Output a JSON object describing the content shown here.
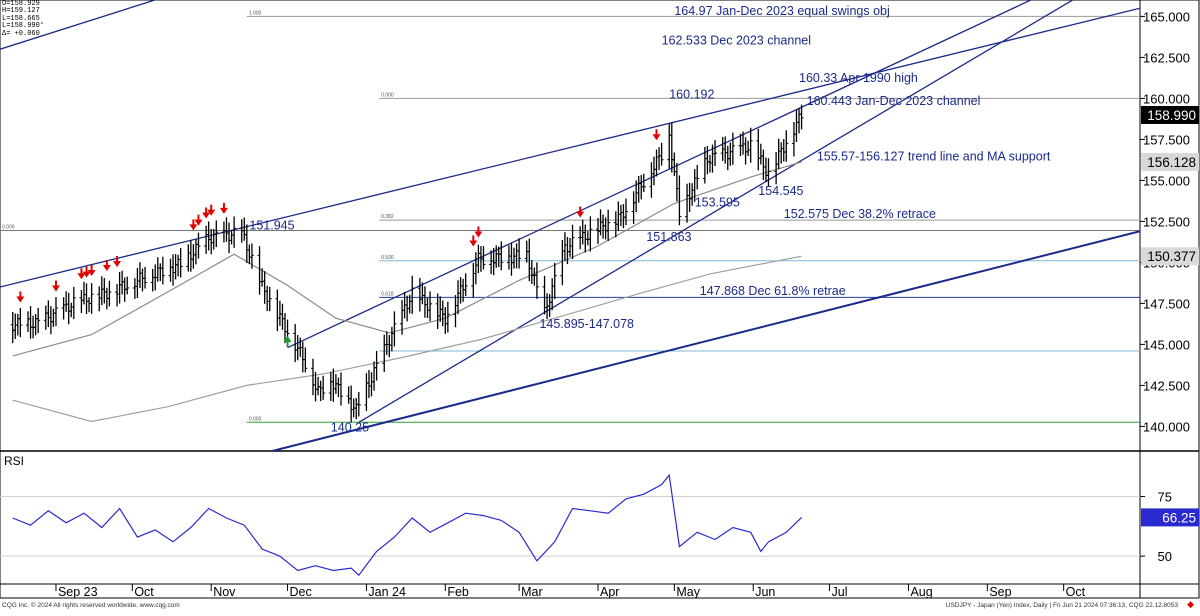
{
  "ohlc_box": {
    "open": "O=158.929",
    "high": "H=159.127",
    "low": "L=158.665",
    "last": "L=158.990°",
    "change": "Δ= +0.060"
  },
  "footer": {
    "left": "CQG Inc. © 2024 All rights reserved worldwide. www.cqg.com",
    "right": "USDJPY - Japan (Yen) Index, Daily | Fri Jun 21 2024 07:36:13, CQG 22.12.8053"
  },
  "chart_data": [
    {
      "type": "ohlc",
      "ylim": [
        138.5,
        166.0
      ],
      "x_tick_labels": [
        "Sep 23",
        "Oct",
        "Nov",
        "Dec",
        "Jan 24",
        "Feb",
        "Mar",
        "Apr",
        "May",
        "Jun",
        "Jul",
        "Aug",
        "Sep",
        "Oct"
      ],
      "y_tick_labels": [
        "140.000",
        "142.500",
        "145.000",
        "147.500",
        "150.000",
        "152.500",
        "155.000",
        "157.500",
        "160.000",
        "162.500",
        "165.000"
      ],
      "price_badges": [
        "158.990",
        "156.128",
        "150.377"
      ],
      "price_anchors": [
        {
          "x": "2023-08-15",
          "y": 146.2
        },
        {
          "x": "2023-08-25",
          "y": 146.3
        },
        {
          "x": "2023-09-08",
          "y": 147.5
        },
        {
          "x": "2023-09-22",
          "y": 148.2
        },
        {
          "x": "2023-10-04",
          "y": 149.0
        },
        {
          "x": "2023-10-20",
          "y": 149.9
        },
        {
          "x": "2023-10-31",
          "y": 151.5
        },
        {
          "x": "2023-11-13",
          "y": 151.8
        },
        {
          "x": "2023-11-21",
          "y": 148.5
        },
        {
          "x": "2023-12-07",
          "y": 144.2
        },
        {
          "x": "2023-12-13",
          "y": 142.1
        },
        {
          "x": "2023-12-18",
          "y": 142.8
        },
        {
          "x": "2023-12-28",
          "y": 141.0
        },
        {
          "x": "2024-01-10",
          "y": 145.3
        },
        {
          "x": "2024-01-19",
          "y": 148.1
        },
        {
          "x": "2024-02-01",
          "y": 146.6
        },
        {
          "x": "2024-02-14",
          "y": 150.2
        },
        {
          "x": "2024-03-04",
          "y": 150.4
        },
        {
          "x": "2024-03-11",
          "y": 146.9
        },
        {
          "x": "2024-03-19",
          "y": 150.9
        },
        {
          "x": "2024-04-10",
          "y": 152.8
        },
        {
          "x": "2024-04-26",
          "y": 156.6
        },
        {
          "x": "2024-04-29",
          "y": 157.8
        },
        {
          "x": "2024-05-03",
          "y": 153.0
        },
        {
          "x": "2024-05-14",
          "y": 156.3
        },
        {
          "x": "2024-05-31",
          "y": 157.1
        },
        {
          "x": "2024-06-07",
          "y": 155.4
        },
        {
          "x": "2024-06-20",
          "y": 158.99
        }
      ],
      "ma_fast": [
        {
          "x": "2023-08-15",
          "y": 144.3
        },
        {
          "x": "2023-09-15",
          "y": 145.6
        },
        {
          "x": "2023-10-15",
          "y": 148.2
        },
        {
          "x": "2023-11-10",
          "y": 150.5
        },
        {
          "x": "2023-12-01",
          "y": 148.6
        },
        {
          "x": "2023-12-20",
          "y": 146.6
        },
        {
          "x": "2024-01-10",
          "y": 145.7
        },
        {
          "x": "2024-02-01",
          "y": 146.6
        },
        {
          "x": "2024-03-01",
          "y": 148.9
        },
        {
          "x": "2024-04-01",
          "y": 151.0
        },
        {
          "x": "2024-05-01",
          "y": 153.6
        },
        {
          "x": "2024-05-31",
          "y": 155.2
        },
        {
          "x": "2024-06-20",
          "y": 156.128
        }
      ],
      "ma_slow": [
        {
          "x": "2023-08-15",
          "y": 141.6
        },
        {
          "x": "2023-09-15",
          "y": 140.3
        },
        {
          "x": "2023-10-15",
          "y": 141.2
        },
        {
          "x": "2023-11-15",
          "y": 142.5
        },
        {
          "x": "2023-12-15",
          "y": 143.2
        },
        {
          "x": "2024-01-15",
          "y": 144.2
        },
        {
          "x": "2024-02-15",
          "y": 145.3
        },
        {
          "x": "2024-03-15",
          "y": 146.6
        },
        {
          "x": "2024-04-15",
          "y": 148.0
        },
        {
          "x": "2024-05-15",
          "y": 149.3
        },
        {
          "x": "2024-06-20",
          "y": 150.377
        }
      ],
      "sell_arrows": [
        "2023-08-18",
        "2023-09-01",
        "2023-09-11",
        "2023-09-13",
        "2023-09-15",
        "2023-09-21",
        "2023-09-25",
        "2023-10-25",
        "2023-10-27",
        "2023-10-30",
        "2023-11-01",
        "2023-11-06",
        "2024-02-12",
        "2024-02-14",
        "2024-03-25",
        "2024-04-24"
      ],
      "buy_arrows": [
        "2023-12-01"
      ],
      "horizontal_levels": [
        {
          "y": 165.0,
          "from": "2023-11-15",
          "color": "#999999",
          "tag": "1.000"
        },
        {
          "y": 160.0,
          "from": "2024-01-06",
          "color": "#999999",
          "tag": "0.000"
        },
        {
          "y": 152.575,
          "from": "2024-01-06",
          "color": "#999999",
          "tag": "0.382"
        },
        {
          "y": 151.945,
          "from": "2023-08-10",
          "color": "#777777",
          "tag": "0.000"
        },
        {
          "y": 150.1,
          "from": "2024-01-06",
          "color": "#7fb8d8",
          "tag": "0.500"
        },
        {
          "y": 147.868,
          "from": "2024-01-06",
          "color": "#2040a0",
          "tag": "0.618"
        },
        {
          "y": 144.6,
          "from": "2024-01-06",
          "color": "#7fb8d8",
          "tag": ""
        },
        {
          "y": 140.25,
          "from": "2023-11-15",
          "color": "#2e9e3e",
          "tag": "0.000"
        }
      ],
      "trend_lines": [
        {
          "from": {
            "x": "2023-08-10",
            "y": 148.5
          },
          "to": {
            "x": "2024-10-31",
            "y": 165.5
          }
        },
        {
          "from": {
            "x": "2023-11-25",
            "y": 138.5
          },
          "to": {
            "x": "2024-10-31",
            "y": 151.9
          }
        },
        {
          "from": {
            "x": "2023-12-29",
            "y": 140.25
          },
          "to": {
            "x": "2024-10-10",
            "y": 166.5
          }
        },
        {
          "from": {
            "x": "2023-12-01",
            "y": 144.8
          },
          "to": {
            "x": "2024-09-25",
            "y": 166.5
          }
        },
        {
          "from": {
            "x": "2023-08-10",
            "y": 163.0
          },
          "to": {
            "x": "2023-10-20",
            "y": 166.5
          }
        }
      ],
      "annotations": [
        {
          "text": "164.97 Jan-Dec 2023 equal swings obj",
          "x": "2024-05-01",
          "y": 165.1
        },
        {
          "text": "162.533 Dec 2023 channel",
          "x": "2024-04-26",
          "y": 163.3
        },
        {
          "text": "160.33 Apr 1990 high",
          "x": "2024-06-19",
          "y": 161.0
        },
        {
          "text": "160.192",
          "x": "2024-04-29",
          "y": 160.0
        },
        {
          "text": "160.443 Jan-Dec 2023 channel",
          "x": "2024-06-22",
          "y": 159.6
        },
        {
          "text": "155.57-156.127 trend line and MA support",
          "x": "2024-06-26",
          "y": 156.2
        },
        {
          "text": "154.545",
          "x": "2024-06-03",
          "y": 154.1
        },
        {
          "text": "153.595",
          "x": "2024-05-09",
          "y": 153.4
        },
        {
          "text": "152.575 Dec 38.2% retrace",
          "x": "2024-06-13",
          "y": 152.7
        },
        {
          "text": "151.945",
          "x": "2023-11-16",
          "y": 152.0
        },
        {
          "text": "151.863",
          "x": "2024-04-20",
          "y": 151.3
        },
        {
          "text": "147.868 Dec 61.8% retrae",
          "x": "2024-05-11",
          "y": 148.0
        },
        {
          "text": "145.895-147.078",
          "x": "2024-03-09",
          "y": 146.0
        },
        {
          "text": "140.25",
          "x": "2023-12-18",
          "y": 139.7
        }
      ]
    },
    {
      "type": "line",
      "title": "RSI",
      "ylim": [
        40,
        92
      ],
      "y_tick_labels": [
        "50",
        "75"
      ],
      "last_value_label": "66.25",
      "values": [
        {
          "x": "2023-08-15",
          "y": 66
        },
        {
          "x": "2023-08-22",
          "y": 63
        },
        {
          "x": "2023-08-29",
          "y": 69
        },
        {
          "x": "2023-09-05",
          "y": 64
        },
        {
          "x": "2023-09-12",
          "y": 68
        },
        {
          "x": "2023-09-19",
          "y": 62
        },
        {
          "x": "2023-09-26",
          "y": 70
        },
        {
          "x": "2023-10-03",
          "y": 58
        },
        {
          "x": "2023-10-10",
          "y": 61
        },
        {
          "x": "2023-10-17",
          "y": 56
        },
        {
          "x": "2023-10-24",
          "y": 62
        },
        {
          "x": "2023-10-31",
          "y": 70
        },
        {
          "x": "2023-11-07",
          "y": 66
        },
        {
          "x": "2023-11-14",
          "y": 63
        },
        {
          "x": "2023-11-21",
          "y": 53
        },
        {
          "x": "2023-11-28",
          "y": 50
        },
        {
          "x": "2023-12-05",
          "y": 44
        },
        {
          "x": "2023-12-12",
          "y": 46
        },
        {
          "x": "2023-12-19",
          "y": 44
        },
        {
          "x": "2023-12-26",
          "y": 45
        },
        {
          "x": "2023-12-29",
          "y": 42
        },
        {
          "x": "2024-01-05",
          "y": 52
        },
        {
          "x": "2024-01-12",
          "y": 58
        },
        {
          "x": "2024-01-19",
          "y": 66
        },
        {
          "x": "2024-01-26",
          "y": 60
        },
        {
          "x": "2024-02-02",
          "y": 64
        },
        {
          "x": "2024-02-09",
          "y": 68
        },
        {
          "x": "2024-02-16",
          "y": 67
        },
        {
          "x": "2024-02-23",
          "y": 65
        },
        {
          "x": "2024-03-01",
          "y": 60
        },
        {
          "x": "2024-03-08",
          "y": 48
        },
        {
          "x": "2024-03-15",
          "y": 56
        },
        {
          "x": "2024-03-22",
          "y": 70
        },
        {
          "x": "2024-03-29",
          "y": 69
        },
        {
          "x": "2024-04-05",
          "y": 68
        },
        {
          "x": "2024-04-12",
          "y": 74
        },
        {
          "x": "2024-04-19",
          "y": 76
        },
        {
          "x": "2024-04-26",
          "y": 80
        },
        {
          "x": "2024-04-29",
          "y": 84
        },
        {
          "x": "2024-05-03",
          "y": 54
        },
        {
          "x": "2024-05-10",
          "y": 60
        },
        {
          "x": "2024-05-17",
          "y": 57
        },
        {
          "x": "2024-05-24",
          "y": 62
        },
        {
          "x": "2024-05-31",
          "y": 60
        },
        {
          "x": "2024-06-04",
          "y": 52
        },
        {
          "x": "2024-06-07",
          "y": 56
        },
        {
          "x": "2024-06-14",
          "y": 60
        },
        {
          "x": "2024-06-20",
          "y": 66.25
        }
      ]
    }
  ]
}
